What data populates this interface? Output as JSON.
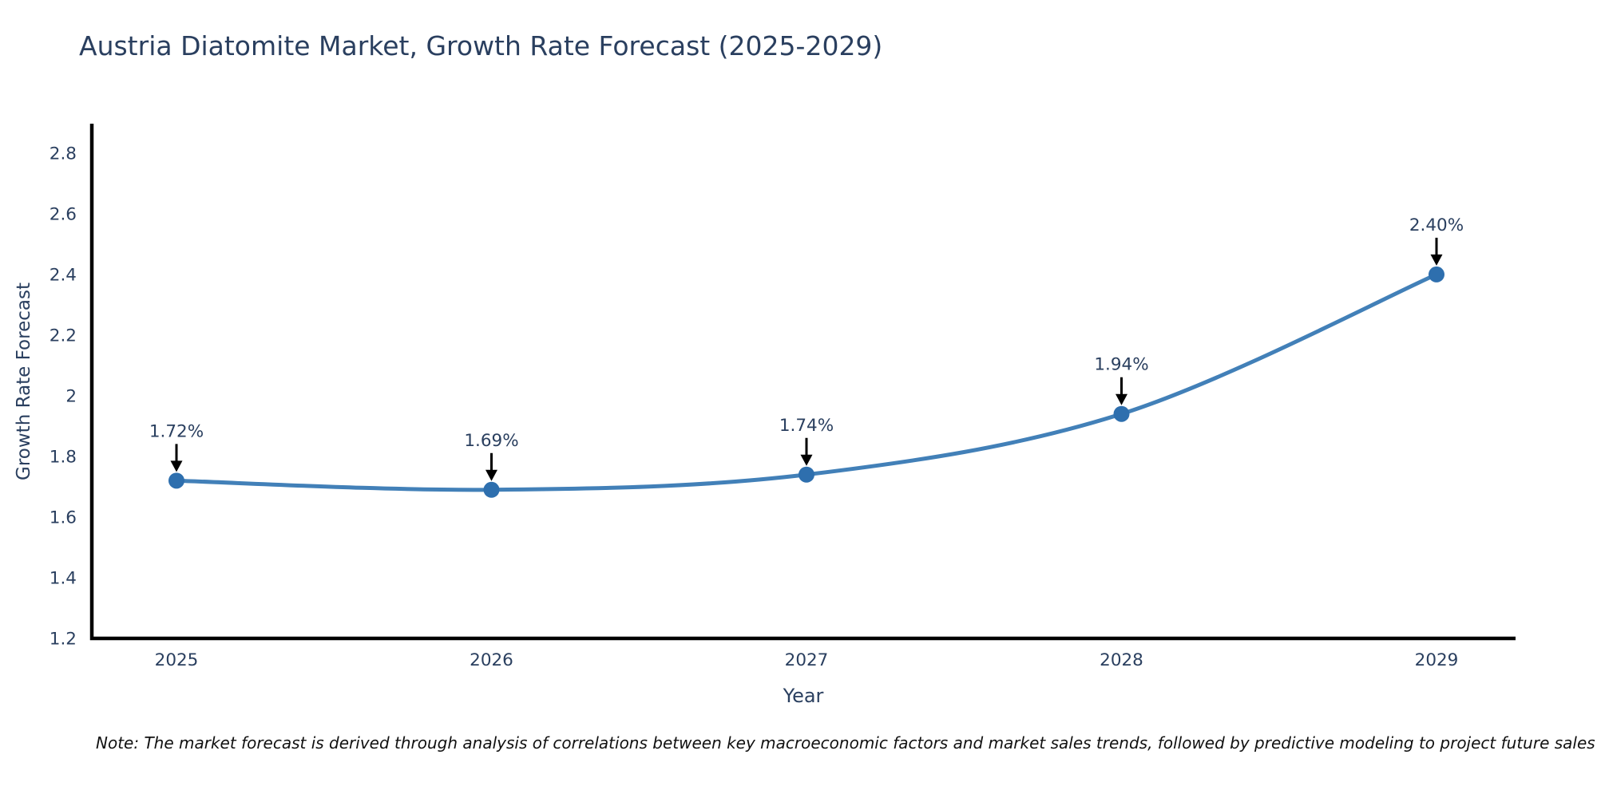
{
  "note": "Note: The market forecast is derived through analysis of correlations between key macroeconomic factors and market sales trends, followed by predictive modeling to project future sales",
  "chart_data": {
    "type": "line",
    "title": "Austria Diatomite Market, Growth Rate Forecast (2025-2029)",
    "xlabel": "Year",
    "ylabel": "Growth Rate Forecast",
    "categories": [
      "2025",
      "2026",
      "2027",
      "2028",
      "2029"
    ],
    "values": [
      1.72,
      1.69,
      1.74,
      1.94,
      2.4
    ],
    "point_labels": [
      "1.72%",
      "1.69%",
      "1.74%",
      "1.94%",
      "2.40%"
    ],
    "ytick_labels": [
      "1.2",
      "1.4",
      "1.6",
      "1.8",
      "2",
      "2.2",
      "2.4",
      "2.6",
      "2.8"
    ],
    "ytick_values": [
      1.2,
      1.4,
      1.6,
      1.8,
      2.0,
      2.2,
      2.4,
      2.6,
      2.8
    ],
    "ylim": [
      1.2,
      2.897
    ],
    "grid": false,
    "legend": false,
    "line_shape": "spline",
    "annotation_arrows": true,
    "colors": {
      "line": "#4280b8",
      "marker": "#2e6fae",
      "axis": "#000000",
      "text": "#2a3f5f",
      "note": "#111111"
    }
  }
}
